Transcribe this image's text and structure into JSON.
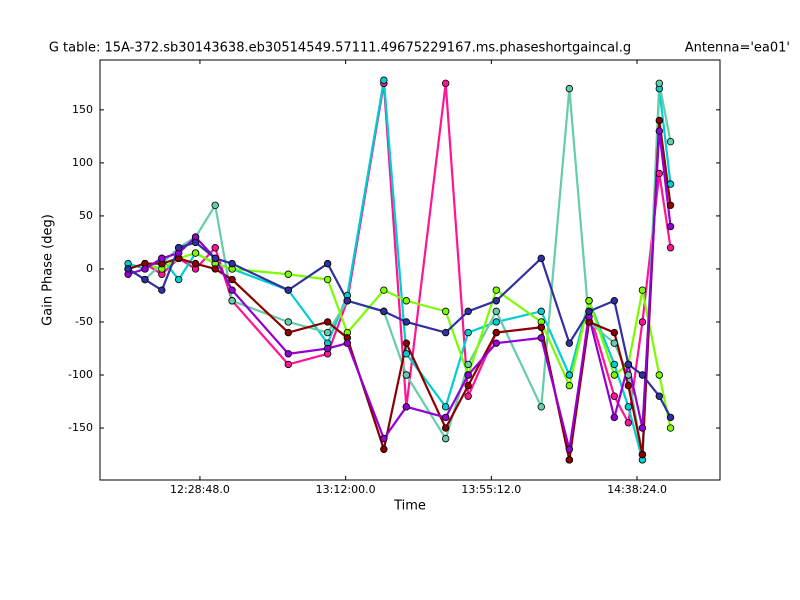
{
  "chart_data": {
    "type": "line",
    "title": "G table: 15A-372.sb30143638.eb30514549.57111.49675229167.ms.phaseshortgaincal.g",
    "subtitle": "Antenna='ea01'",
    "x_label": "Time",
    "y_label": "Gain Phase (deg)",
    "x": [
      43650,
      43950,
      44250,
      44550,
      44850,
      45200,
      45500,
      46500,
      47200,
      47550,
      48200,
      48600,
      49300,
      49700,
      50200,
      51000,
      51500,
      51850,
      52300,
      52550,
      52800,
      53100,
      53300
    ],
    "series": [
      {
        "color": "#ff1493",
        "values": [
          0,
          5,
          -5,
          10,
          0,
          20,
          -30,
          -90,
          -80,
          -30,
          175,
          -130,
          175,
          -120,
          -60,
          -55,
          -180,
          -40,
          -120,
          -145,
          -50,
          90,
          20
        ]
      },
      {
        "color": "#00ced1",
        "values": [
          5,
          0,
          10,
          -10,
          15,
          5,
          0,
          -20,
          -70,
          -25,
          178,
          -80,
          -130,
          -60,
          -50,
          -40,
          -100,
          -30,
          -90,
          -130,
          -180,
          170,
          80
        ]
      },
      {
        "color": "#66cdaa",
        "values": [
          0,
          -10,
          5,
          20,
          30,
          60,
          -30,
          -50,
          -60,
          -30,
          -40,
          -100,
          -160,
          -90,
          -40,
          -130,
          170,
          -50,
          -70,
          -100,
          -175,
          175,
          120
        ]
      },
      {
        "color": "#7cfc00",
        "values": [
          0,
          5,
          0,
          10,
          15,
          5,
          0,
          -5,
          -10,
          -60,
          -20,
          -30,
          -40,
          -100,
          -20,
          -50,
          -110,
          -30,
          -100,
          -90,
          -20,
          -100,
          -150
        ]
      },
      {
        "color": "#8b0000",
        "values": [
          0,
          5,
          5,
          10,
          5,
          0,
          -10,
          -60,
          -50,
          -65,
          -170,
          -70,
          -150,
          -110,
          -60,
          -55,
          -180,
          -50,
          -60,
          -110,
          -175,
          140,
          60
        ]
      },
      {
        "color": "#9400d3",
        "values": [
          -5,
          0,
          10,
          15,
          30,
          10,
          -20,
          -80,
          -75,
          -70,
          -160,
          -130,
          -140,
          -100,
          -70,
          -65,
          -170,
          -45,
          -140,
          -90,
          -150,
          130,
          40
        ]
      },
      {
        "color": "#3030a0",
        "values": [
          0,
          -10,
          -20,
          20,
          25,
          10,
          5,
          -20,
          5,
          -30,
          -40,
          -50,
          -60,
          -40,
          -30,
          10,
          -70,
          -40,
          -30,
          -90,
          -100,
          -120,
          -140
        ]
      }
    ],
    "xlim": [
      43150,
      54180
    ],
    "xticks": [
      {
        "value": 44928,
        "label": "12:28:48.0"
      },
      {
        "value": 47520,
        "label": "13:12:00.0"
      },
      {
        "value": 50112,
        "label": "13:55:12.0"
      },
      {
        "value": 52704,
        "label": "14:38:24.0"
      }
    ],
    "ylim": [
      -199,
      197
    ],
    "yticks": [
      -150,
      -100,
      -50,
      0,
      50,
      100,
      150
    ],
    "grid": false
  }
}
